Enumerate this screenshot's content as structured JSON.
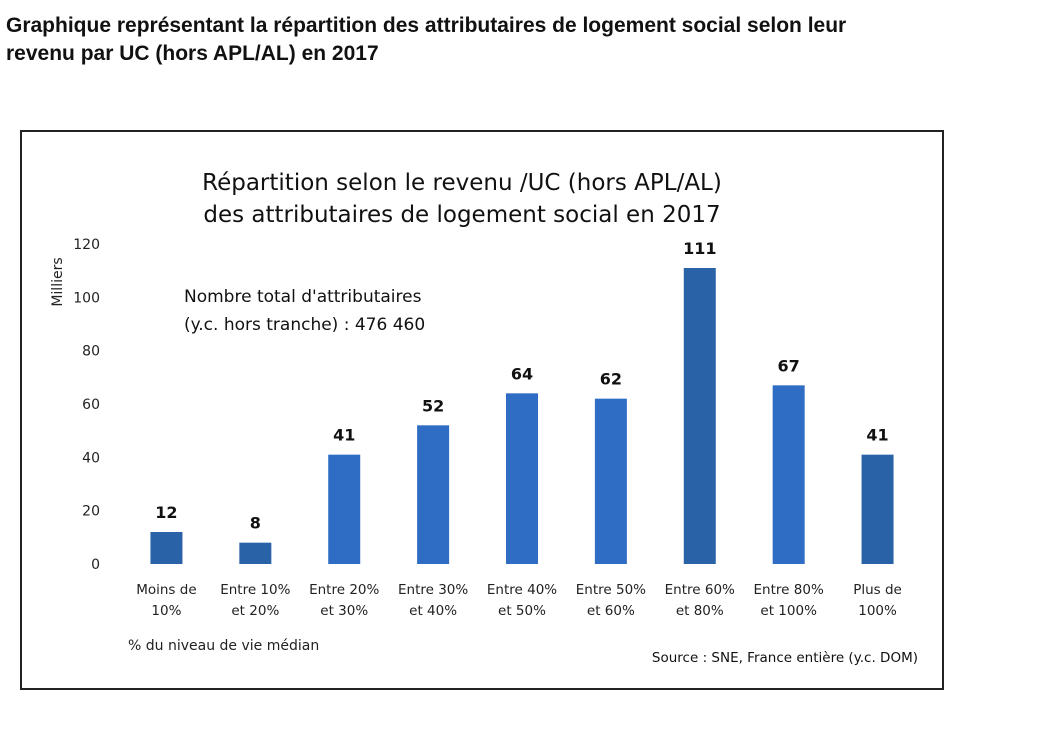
{
  "page_heading": {
    "line1": "Graphique représentant la répartition des attributaires de logement social selon leur",
    "line2": "revenu par UC (hors APL/AL) en 2017"
  },
  "chart_data": {
    "type": "bar",
    "title_line1": "Répartition selon le revenu /UC (hors APL/AL)",
    "title_line2": "des attributaires de logement social en 2017",
    "ylabel": "Milliers",
    "xlabel": "% du niveau de vie médian",
    "annotation_line1": "Nombre total d'attributaires",
    "annotation_line2": "(y.c. hors tranche) : 476 460",
    "source": "Source : SNE, France entière (y.c. DOM)",
    "ylim": [
      0,
      120
    ],
    "yticks": [
      0,
      20,
      40,
      60,
      80,
      100,
      120
    ],
    "grid": false,
    "legend": "none",
    "categories": [
      [
        "Moins de",
        "10%"
      ],
      [
        "Entre 10%",
        "et 20%"
      ],
      [
        "Entre 20%",
        "et 30%"
      ],
      [
        "Entre 30%",
        "et 40%"
      ],
      [
        "Entre 40%",
        "et 50%"
      ],
      [
        "Entre 50%",
        "et 60%"
      ],
      [
        "Entre 60%",
        "et 80%"
      ],
      [
        "Entre 80%",
        "et 100%"
      ],
      [
        "Plus de",
        "100%"
      ]
    ],
    "values": [
      12,
      8,
      41,
      52,
      64,
      62,
      111,
      67,
      41
    ],
    "colors": [
      "#2a62a8",
      "#2a62a8",
      "#2f6cc4",
      "#2f6cc4",
      "#2f6cc4",
      "#2f6cc4",
      "#2a62a8",
      "#2f6cc4",
      "#2a62a8"
    ]
  }
}
